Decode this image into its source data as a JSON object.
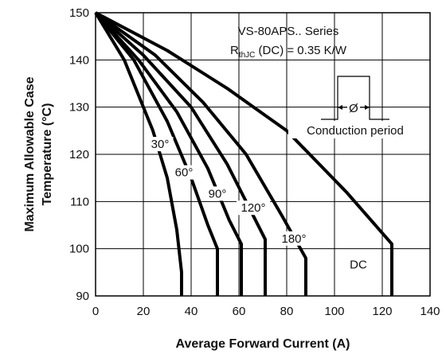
{
  "chart_data": {
    "type": "line",
    "title": "",
    "xlabel": "Average Forward Current (A)",
    "ylabel_line1": "Maximum Allowable Case",
    "ylabel_line2": "Temperature (°C)",
    "xlim": [
      0,
      140
    ],
    "ylim": [
      90,
      150
    ],
    "xticks": [
      0,
      20,
      40,
      60,
      80,
      100,
      120,
      140
    ],
    "yticks": [
      90,
      100,
      110,
      120,
      130,
      140,
      150
    ],
    "grid": true,
    "annotations": {
      "series_name": "VS-80APS.. Series",
      "rth_prefix": "R",
      "rth_sub": "thJC",
      "rth_suffix": " (DC) = 0.35 K/W",
      "phi": "Ø",
      "conduction": "Conduction period"
    },
    "series": [
      {
        "label": "30°",
        "label_at": [
          27,
          121.5
        ],
        "points": [
          [
            0,
            150
          ],
          [
            12,
            140
          ],
          [
            24,
            125
          ],
          [
            30,
            115
          ],
          [
            34,
            104
          ],
          [
            36,
            95
          ],
          [
            36,
            90
          ]
        ]
      },
      {
        "label": "60°",
        "label_at": [
          37,
          115.5
        ],
        "points": [
          [
            0,
            150
          ],
          [
            16,
            140
          ],
          [
            30,
            127
          ],
          [
            40,
            115
          ],
          [
            47,
            105
          ],
          [
            51,
            100
          ],
          [
            51,
            90
          ]
        ]
      },
      {
        "label": "90°",
        "label_at": [
          51,
          111
        ],
        "points": [
          [
            0,
            150
          ],
          [
            18,
            140
          ],
          [
            34,
            129
          ],
          [
            47,
            117
          ],
          [
            56,
            106
          ],
          [
            61,
            101
          ],
          [
            61,
            90
          ]
        ]
      },
      {
        "label": "120°",
        "label_at": [
          66,
          108
        ],
        "points": [
          [
            0,
            150
          ],
          [
            20,
            141
          ],
          [
            40,
            130
          ],
          [
            55,
            118
          ],
          [
            65,
            108
          ],
          [
            71,
            102
          ],
          [
            71,
            90
          ]
        ]
      },
      {
        "label": "180°",
        "label_at": [
          83,
          101.5
        ],
        "points": [
          [
            0,
            150
          ],
          [
            25,
            141
          ],
          [
            45,
            131
          ],
          [
            63,
            120
          ],
          [
            78,
            107
          ],
          [
            88,
            98
          ],
          [
            88,
            90
          ]
        ]
      },
      {
        "label": "DC",
        "label_at": [
          110,
          96
        ],
        "points": [
          [
            0,
            150
          ],
          [
            30,
            142
          ],
          [
            55,
            134
          ],
          [
            80,
            125
          ],
          [
            105,
            112
          ],
          [
            124,
            101
          ],
          [
            124,
            90
          ]
        ]
      }
    ]
  }
}
